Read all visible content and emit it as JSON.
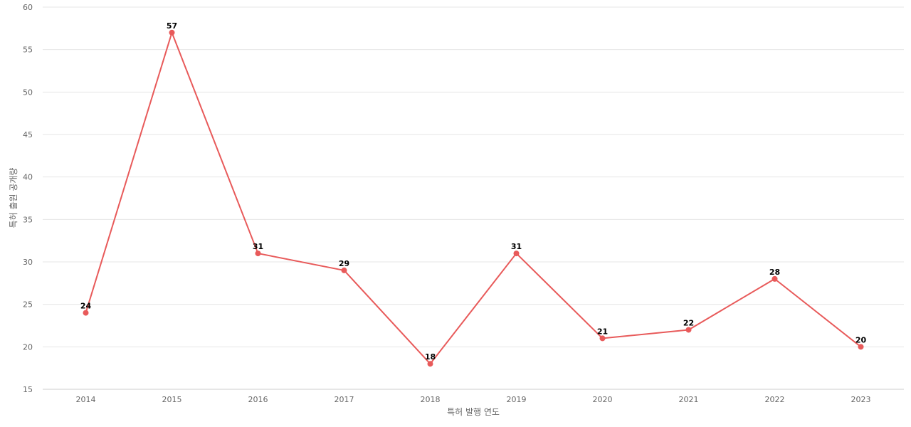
{
  "chart_data": {
    "type": "line",
    "title": "",
    "xlabel": "특허 발행 연도",
    "ylabel": "특허 출원 공개량",
    "categories": [
      "2014",
      "2015",
      "2016",
      "2017",
      "2018",
      "2019",
      "2020",
      "2021",
      "2022",
      "2023"
    ],
    "series": [
      {
        "values": [
          24,
          57,
          31,
          29,
          18,
          31,
          21,
          22,
          28,
          20
        ],
        "color": "#e85a5a"
      }
    ],
    "ylim": [
      15,
      60
    ],
    "yticks": [
      15,
      20,
      25,
      30,
      35,
      40,
      45,
      50,
      55,
      60
    ],
    "grid": true,
    "data_labels": true,
    "legend": "none"
  }
}
